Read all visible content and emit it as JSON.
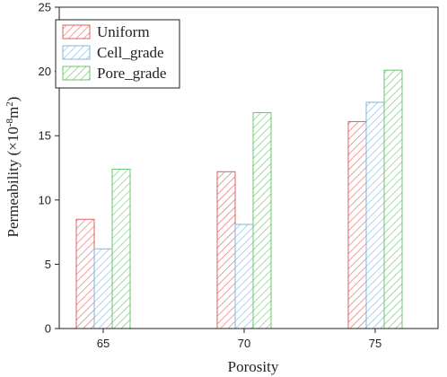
{
  "chart_data": {
    "type": "bar",
    "categories": [
      "65",
      "70",
      "75"
    ],
    "series": [
      {
        "name": "Uniform",
        "values": [
          8.5,
          12.2,
          16.1
        ],
        "color": "#e06060"
      },
      {
        "name": "Cell_grade",
        "values": [
          6.2,
          8.1,
          17.6
        ],
        "color": "#7fb7e0"
      },
      {
        "name": "Pore_grade",
        "values": [
          12.4,
          16.8,
          20.1
        ],
        "color": "#6cc46c"
      }
    ],
    "xlabel": "Porosity",
    "ylabel_main": "Permeability (×10",
    "ylabel_sup": "-8",
    "ylabel_unit": "m",
    "ylabel_unit_sup": "2",
    "ylabel_close": ")",
    "ylim": [
      0,
      25
    ],
    "yticks": [
      "0",
      "5",
      "10",
      "15",
      "20",
      "25"
    ],
    "legend_position": "top-left",
    "grid": false,
    "bar_fill": "diagonal-hatch"
  }
}
